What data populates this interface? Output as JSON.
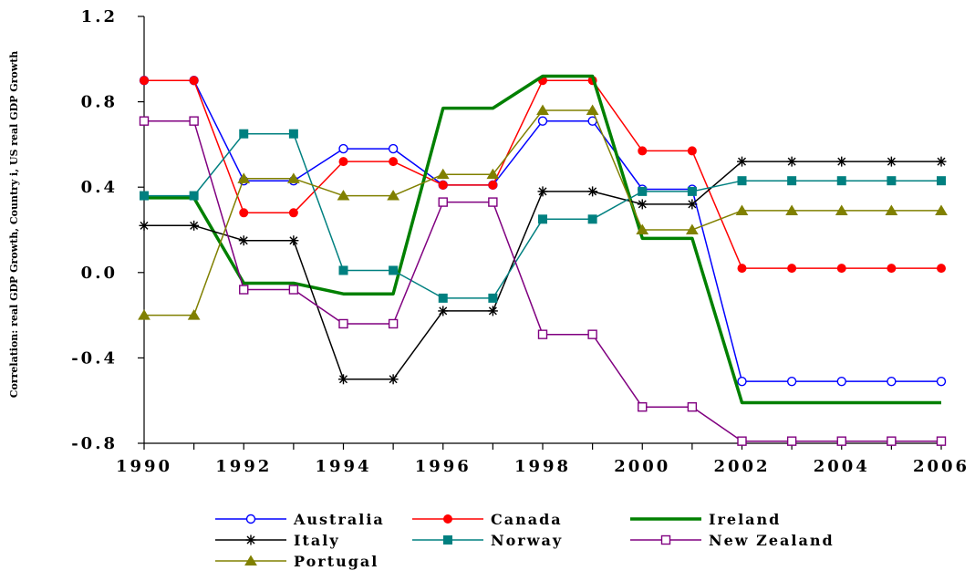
{
  "chart_data": {
    "type": "line",
    "title": "",
    "xlabel": "",
    "ylabel": "Correlation: real GDP Growth, Country i, US real GDP Growth",
    "xlim": [
      1990,
      2006
    ],
    "ylim": [
      -0.8,
      1.2
    ],
    "x_ticks": [
      1990,
      1992,
      1994,
      1996,
      1998,
      2000,
      2002,
      2004,
      2006
    ],
    "x_tick_labels": [
      "1990",
      "1992",
      "1994",
      "1996",
      "1998",
      "2000",
      "2002",
      "2004",
      "2006"
    ],
    "y_ticks": [
      -0.8,
      -0.4,
      0.0,
      0.4,
      0.8,
      1.2
    ],
    "y_tick_labels": [
      "-0.8",
      "-0.4",
      "0.0",
      "0.4",
      "0.8",
      "1.2"
    ],
    "grid": false,
    "legend_position": "bottom",
    "x": [
      1990,
      1991,
      1992,
      1993,
      1994,
      1995,
      1996,
      1997,
      1998,
      1999,
      2000,
      2001,
      2002,
      2003,
      2004,
      2005,
      2006
    ],
    "series": [
      {
        "name": "Australia",
        "color": "#0000ff",
        "marker": "circle-open",
        "values": [
          0.9,
          0.9,
          0.43,
          0.43,
          0.58,
          0.58,
          0.41,
          0.41,
          0.71,
          0.71,
          0.39,
          0.39,
          -0.51,
          -0.51,
          -0.51,
          -0.51,
          -0.51
        ]
      },
      {
        "name": "Canada",
        "color": "#ff0000",
        "marker": "circle-filled",
        "values": [
          0.9,
          0.9,
          0.28,
          0.28,
          0.52,
          0.52,
          0.41,
          0.41,
          0.9,
          0.9,
          0.57,
          0.57,
          0.02,
          0.02,
          0.02,
          0.02,
          0.02
        ]
      },
      {
        "name": "Ireland",
        "color": "#008000",
        "marker": "none",
        "thick": true,
        "values": [
          0.35,
          0.35,
          -0.05,
          -0.05,
          -0.1,
          -0.1,
          0.77,
          0.77,
          0.92,
          0.92,
          0.16,
          0.16,
          -0.61,
          -0.61,
          -0.61,
          -0.61,
          -0.61
        ]
      },
      {
        "name": "Italy",
        "color": "#000000",
        "marker": "star",
        "values": [
          0.22,
          0.22,
          0.15,
          0.15,
          -0.5,
          -0.5,
          -0.18,
          -0.18,
          0.38,
          0.38,
          0.32,
          0.32,
          0.52,
          0.52,
          0.52,
          0.52,
          0.52
        ]
      },
      {
        "name": "Norway",
        "color": "#008080",
        "marker": "square-filled",
        "values": [
          0.36,
          0.36,
          0.65,
          0.65,
          0.01,
          0.01,
          -0.12,
          -0.12,
          0.25,
          0.25,
          0.38,
          0.38,
          0.43,
          0.43,
          0.43,
          0.43,
          0.43
        ]
      },
      {
        "name": "New Zealand",
        "color": "#800080",
        "marker": "square-open",
        "values": [
          0.71,
          0.71,
          -0.08,
          -0.08,
          -0.24,
          -0.24,
          0.33,
          0.33,
          -0.29,
          -0.29,
          -0.63,
          -0.63,
          -0.79,
          -0.79,
          -0.79,
          -0.79,
          -0.79
        ]
      },
      {
        "name": "Portugal",
        "color": "#808000",
        "marker": "triangle-filled",
        "values": [
          -0.2,
          -0.2,
          0.44,
          0.44,
          0.36,
          0.36,
          0.46,
          0.46,
          0.76,
          0.76,
          0.2,
          0.2,
          0.29,
          0.29,
          0.29,
          0.29,
          0.29
        ]
      }
    ]
  }
}
